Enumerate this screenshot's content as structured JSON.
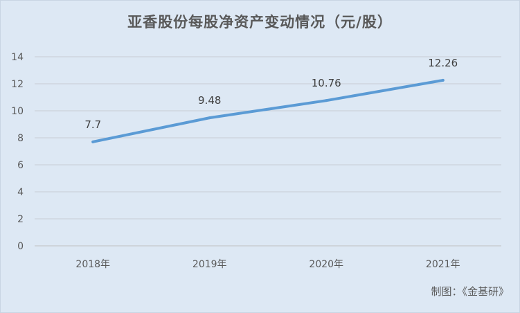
{
  "chart_data": {
    "type": "line",
    "title": "亚香股份每股净资产变动情况（元/股）",
    "categories": [
      "2018年",
      "2019年",
      "2020年",
      "2021年"
    ],
    "series": [
      {
        "values": [
          7.7,
          9.48,
          10.76,
          12.26
        ],
        "labels": [
          "7.7",
          "9.48",
          "10.76",
          "12.26"
        ]
      }
    ],
    "ylim": [
      0,
      14
    ],
    "yticks": [
      0,
      2,
      4,
      6,
      8,
      10,
      12,
      14
    ],
    "xlabel": "",
    "ylabel": "",
    "grid": true,
    "line_color": "#5b9bd5"
  },
  "source_text": "制图：《金基研》"
}
